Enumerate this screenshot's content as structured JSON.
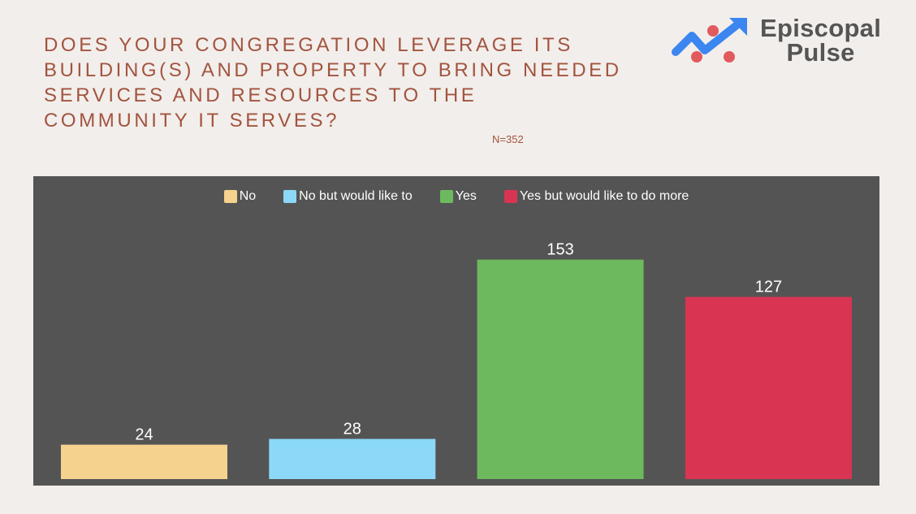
{
  "title": "DOES YOUR CONGREGATION LEVERAGE ITS BUILDING(S) AND PROPERTY TO BRING NEEDED SERVICES AND RESOURCES TO THE COMMUNITY IT SERVES?",
  "sample_size": "N=352",
  "logo": {
    "line1": "Episcopal",
    "line2": "Pulse",
    "icon": "trend-arrow-icon"
  },
  "colors": {
    "background": "#f2eeeb",
    "panel": "#545454",
    "title": "#a2543f",
    "logo_blue": "#3b86f0",
    "logo_red": "#e05a5e"
  },
  "chart_data": {
    "type": "bar",
    "categories": [
      "No",
      "No but would like to",
      "Yes",
      "Yes but would like to do more"
    ],
    "values": [
      24,
      28,
      153,
      127
    ],
    "colors": [
      "#f5d28e",
      "#8cd8f8",
      "#6dba5e",
      "#d93452"
    ],
    "legend": [
      "No",
      "No but would like to",
      "Yes",
      "Yes but would like to do more"
    ],
    "legend_position": "top-center",
    "data_labels": [
      "24",
      "28",
      "153",
      "127"
    ],
    "ylim": [
      0,
      180
    ],
    "grid": false,
    "axes_visible": false
  }
}
